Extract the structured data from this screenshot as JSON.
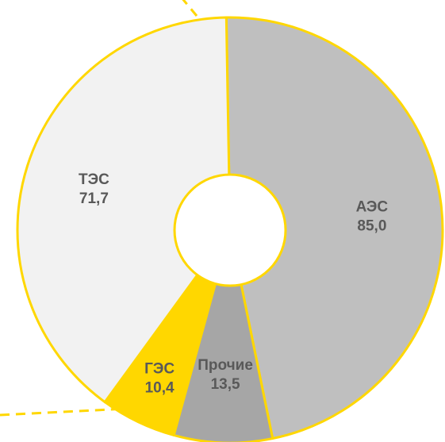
{
  "chart_data": {
    "type": "pie",
    "variant": "donut",
    "categories": [
      "АЭС",
      "Прочие",
      "ГЭС",
      "ТЭС"
    ],
    "values": [
      85.0,
      13.5,
      10.4,
      71.7
    ],
    "value_labels": [
      "85,0",
      "13,5",
      "10,4",
      "71,7"
    ],
    "title": "",
    "start_angle_deg": -1,
    "direction": "clockwise",
    "colors": {
      "АЭС": "#bfbfbf",
      "Прочие": "#a6a6a6",
      "ГЭС": "#ffd700",
      "ТЭС": "#f2f2f2"
    },
    "outline_color": "#ffd700",
    "callout_line_color": "#ffd700",
    "label_color": "#595959",
    "legend": "none"
  }
}
